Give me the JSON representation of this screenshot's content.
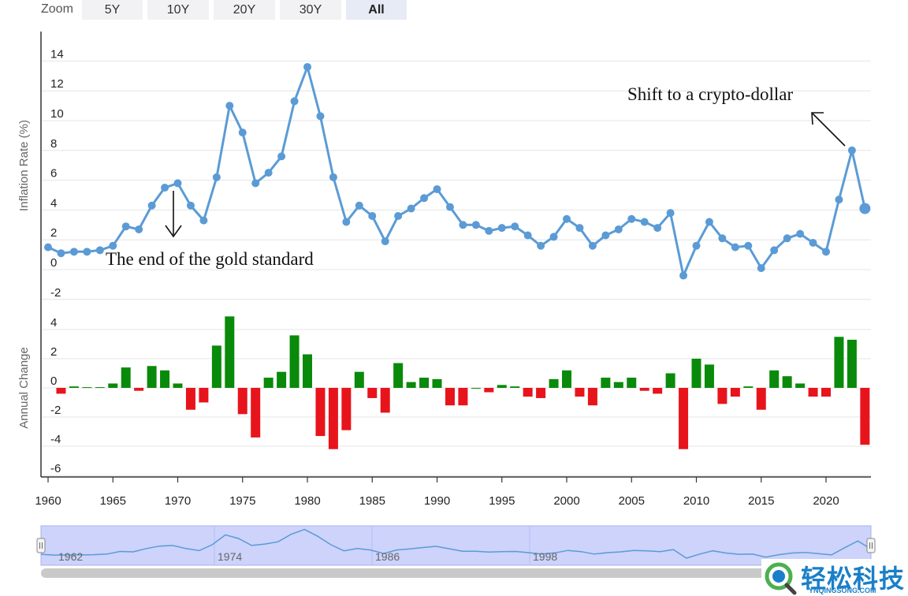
{
  "zoom": {
    "label": "Zoom",
    "buttons": [
      {
        "label": "5Y",
        "active": false
      },
      {
        "label": "10Y",
        "active": false
      },
      {
        "label": "20Y",
        "active": false
      },
      {
        "label": "30Y",
        "active": false
      },
      {
        "label": "All",
        "active": true
      }
    ]
  },
  "watermark": {
    "text_cn": "轻松科技",
    "text_en": "YNQINGSONG.COM"
  },
  "chart_data": [
    {
      "type": "line",
      "title": "",
      "ylabel": "Inflation Rate (%)",
      "xlabel": "",
      "ylim": [
        -2,
        14
      ],
      "yticks": [
        -2,
        0,
        2,
        4,
        6,
        8,
        10,
        12,
        14
      ],
      "grid": true,
      "color": "#5b9bd5",
      "x": [
        1960,
        1961,
        1962,
        1963,
        1964,
        1965,
        1966,
        1967,
        1968,
        1969,
        1970,
        1971,
        1972,
        1973,
        1974,
        1975,
        1976,
        1977,
        1978,
        1979,
        1980,
        1981,
        1982,
        1983,
        1984,
        1985,
        1986,
        1987,
        1988,
        1989,
        1990,
        1991,
        1992,
        1993,
        1994,
        1995,
        1996,
        1997,
        1998,
        1999,
        2000,
        2001,
        2002,
        2003,
        2004,
        2005,
        2006,
        2007,
        2008,
        2009,
        2010,
        2011,
        2012,
        2013,
        2014,
        2015,
        2016,
        2017,
        2018,
        2019,
        2020,
        2021,
        2022,
        2023
      ],
      "values": [
        1.5,
        1.1,
        1.2,
        1.2,
        1.3,
        1.6,
        2.9,
        2.7,
        4.3,
        5.5,
        5.8,
        4.3,
        3.3,
        6.2,
        11.0,
        9.2,
        5.8,
        6.5,
        7.6,
        11.3,
        13.6,
        10.3,
        6.2,
        3.2,
        4.3,
        3.6,
        1.9,
        3.6,
        4.1,
        4.8,
        5.4,
        4.2,
        3.0,
        3.0,
        2.6,
        2.8,
        2.9,
        2.3,
        1.6,
        2.2,
        3.4,
        2.8,
        1.6,
        2.3,
        2.7,
        3.4,
        3.2,
        2.8,
        3.8,
        -0.4,
        1.6,
        3.2,
        2.1,
        1.5,
        1.6,
        0.1,
        1.3,
        2.1,
        2.4,
        1.8,
        1.2,
        4.7,
        8.0,
        4.1
      ],
      "annotations": [
        {
          "text": "The end of the gold standard",
          "x": 1970,
          "y": 5.8
        },
        {
          "text": "Shift to a crypto-dollar",
          "x": 2022,
          "y": 8.0
        }
      ]
    },
    {
      "type": "bar",
      "title": "",
      "ylabel": "Annual Change",
      "xlabel": "",
      "ylim": [
        -6,
        5
      ],
      "yticks": [
        -6,
        -4,
        -2,
        0,
        2,
        4
      ],
      "grid": true,
      "positive_color": "#0a8a0a",
      "negative_color": "#e8141c",
      "x": [
        1961,
        1962,
        1963,
        1964,
        1965,
        1966,
        1967,
        1968,
        1969,
        1970,
        1971,
        1972,
        1973,
        1974,
        1975,
        1976,
        1977,
        1978,
        1979,
        1980,
        1981,
        1982,
        1983,
        1984,
        1985,
        1986,
        1987,
        1988,
        1989,
        1990,
        1991,
        1992,
        1993,
        1994,
        1995,
        1996,
        1997,
        1998,
        1999,
        2000,
        2001,
        2002,
        2003,
        2004,
        2005,
        2006,
        2007,
        2008,
        2009,
        2010,
        2011,
        2012,
        2013,
        2014,
        2015,
        2016,
        2017,
        2018,
        2019,
        2020,
        2021,
        2022,
        2023
      ],
      "values": [
        -0.4,
        0.1,
        0.05,
        0.05,
        0.3,
        1.4,
        -0.2,
        1.5,
        1.2,
        0.3,
        -1.5,
        -1.0,
        2.9,
        4.9,
        -1.8,
        -3.4,
        0.7,
        1.1,
        3.6,
        2.3,
        -3.3,
        -4.2,
        -2.9,
        1.1,
        -0.7,
        -1.7,
        1.7,
        0.4,
        0.7,
        0.6,
        -1.2,
        -1.2,
        0.0,
        -0.3,
        0.2,
        0.1,
        -0.6,
        -0.7,
        0.6,
        1.2,
        -0.6,
        -1.2,
        0.7,
        0.4,
        0.7,
        -0.2,
        -0.4,
        1.0,
        -4.2,
        2.0,
        1.6,
        -1.1,
        -0.6,
        0.1,
        -1.5,
        1.2,
        0.8,
        0.3,
        -0.6,
        -0.6,
        3.5,
        3.3,
        -3.9
      ]
    }
  ],
  "x_axis": {
    "ticks": [
      1960,
      1965,
      1970,
      1975,
      1980,
      1985,
      1990,
      1995,
      2000,
      2005,
      2010,
      2015,
      2020
    ]
  },
  "navigator": {
    "labels": [
      "1962",
      "1974",
      "1986",
      "1998"
    ]
  }
}
